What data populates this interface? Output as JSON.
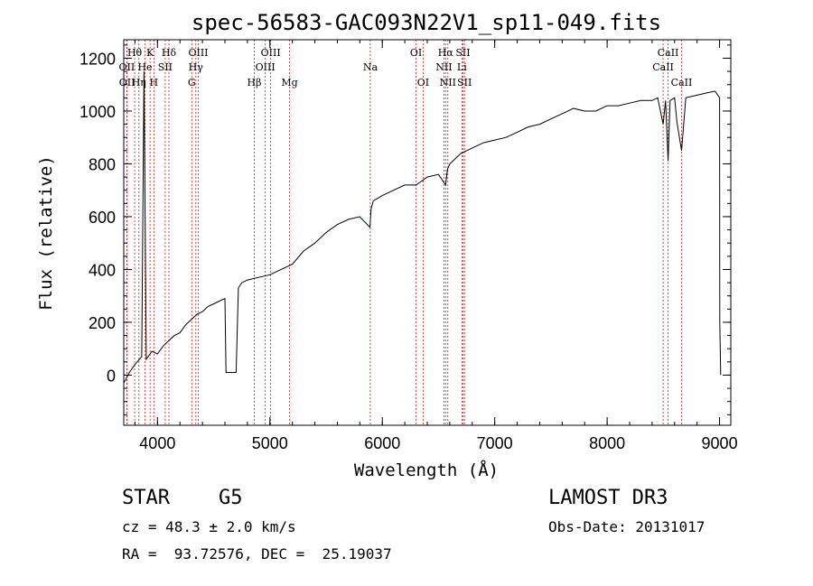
{
  "chart_data": {
    "type": "line",
    "title": "spec-56583-GAC093N22V1_sp11-049.fits",
    "xlabel": "Wavelength (Å)",
    "ylabel": "Flux (relative)",
    "xlim": [
      3700,
      9100
    ],
    "ylim": [
      -190,
      1270
    ],
    "xticks": [
      "4000",
      "5000",
      "6000",
      "7000",
      "8000",
      "9000"
    ],
    "yticks": [
      "0",
      "200",
      "400",
      "600",
      "800",
      "1000",
      "1200"
    ],
    "series": [
      {
        "name": "spectrum",
        "x": [
          3700,
          3750,
          3800,
          3860,
          3880,
          3900,
          3950,
          4000,
          4050,
          4100,
          4150,
          4200,
          4250,
          4300,
          4350,
          4400,
          4450,
          4500,
          4550,
          4600,
          4610,
          4620,
          4700,
          4720,
          4750,
          4800,
          4900,
          5000,
          5100,
          5200,
          5300,
          5400,
          5500,
          5600,
          5700,
          5800,
          5890,
          5900,
          5920,
          6000,
          6100,
          6200,
          6300,
          6400,
          6500,
          6563,
          6580,
          6600,
          6700,
          6800,
          6900,
          7000,
          7100,
          7200,
          7300,
          7400,
          7500,
          7600,
          7700,
          7800,
          7900,
          8000,
          8100,
          8200,
          8300,
          8400,
          8450,
          8498,
          8520,
          8542,
          8560,
          8600,
          8620,
          8662,
          8700,
          8800,
          8900,
          8960,
          9000,
          9002,
          9010
        ],
        "y": [
          -30,
          10,
          40,
          70,
          1150,
          60,
          90,
          80,
          110,
          130,
          150,
          160,
          190,
          210,
          230,
          240,
          260,
          270,
          280,
          290,
          10,
          10,
          10,
          330,
          350,
          360,
          370,
          380,
          400,
          420,
          470,
          500,
          540,
          570,
          590,
          600,
          560,
          630,
          660,
          680,
          700,
          720,
          720,
          750,
          760,
          720,
          780,
          800,
          840,
          860,
          880,
          890,
          900,
          920,
          940,
          950,
          970,
          990,
          1010,
          1000,
          1000,
          1020,
          1020,
          1030,
          1040,
          1040,
          1050,
          950,
          1040,
          810,
          1040,
          1050,
          960,
          850,
          1050,
          1060,
          1070,
          1075,
          1050,
          200,
          0
        ]
      }
    ],
    "line_markers": [
      {
        "label": "Hθ",
        "x": 3797,
        "row": 1
      },
      {
        "label": "OII",
        "x": 3727,
        "row": 2
      },
      {
        "label": "OII",
        "x": 3729,
        "row": 3
      },
      {
        "label": "Hη",
        "x": 3835,
        "row": 3
      },
      {
        "label": "He",
        "x": 3889,
        "row": 2
      },
      {
        "label": "K",
        "x": 3934,
        "row": 1
      },
      {
        "label": "H",
        "x": 3968,
        "row": 3
      },
      {
        "label": "SII",
        "x": 4069,
        "row": 2
      },
      {
        "label": "Hδ",
        "x": 4102,
        "row": 1
      },
      {
        "label": "OIII",
        "x": 4363,
        "row": 1
      },
      {
        "label": "Hγ",
        "x": 4341,
        "row": 2
      },
      {
        "label": "G",
        "x": 4305,
        "row": 3
      },
      {
        "label": "OIII",
        "x": 5007,
        "row": 1
      },
      {
        "label": "OIII",
        "x": 4959,
        "row": 2
      },
      {
        "label": "Hβ",
        "x": 4861,
        "row": 3
      },
      {
        "label": "Mg",
        "x": 5175,
        "row": 3
      },
      {
        "label": "Na",
        "x": 5893,
        "row": 2
      },
      {
        "label": "OI",
        "x": 6300,
        "row": 1
      },
      {
        "label": "OI",
        "x": 6363,
        "row": 3
      },
      {
        "label": "Hα",
        "x": 6563,
        "row": 1
      },
      {
        "label": "NII",
        "x": 6548,
        "row": 2
      },
      {
        "label": "NII",
        "x": 6583,
        "row": 3
      },
      {
        "label": "SII",
        "x": 6717,
        "row": 1
      },
      {
        "label": "Li",
        "x": 6708,
        "row": 2
      },
      {
        "label": "SII",
        "x": 6731,
        "row": 3
      },
      {
        "label": "CaII",
        "x": 8542,
        "row": 1
      },
      {
        "label": "CaII",
        "x": 8498,
        "row": 2
      },
      {
        "label": "CaII",
        "x": 8662,
        "row": 3
      }
    ]
  },
  "info": {
    "object_class": "STAR",
    "subclass": "G5",
    "redshift": "cz = 48.3 ± 2.0 km/s",
    "coords": "RA =  93.72576, DEC =  25.19037",
    "survey": "LAMOST DR3",
    "obs_date": "Obs-Date: 20131017"
  },
  "colors": {
    "marker_line": "#cc2222",
    "spectrum": "#000000"
  }
}
